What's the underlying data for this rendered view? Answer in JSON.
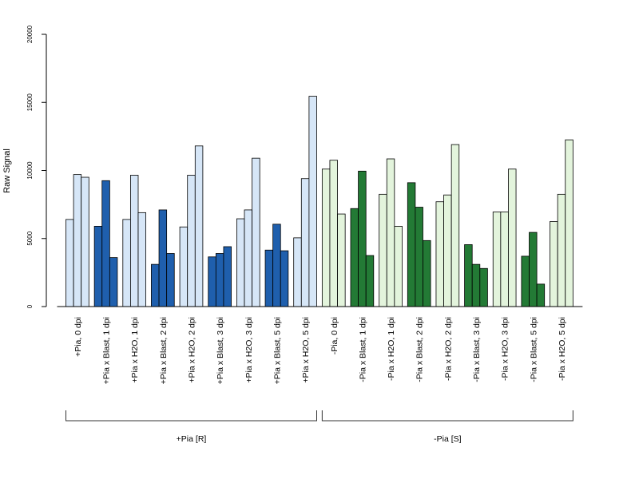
{
  "chart_data": {
    "type": "bar",
    "ylabel": "Raw Signal",
    "ylim": [
      0,
      20000
    ],
    "yticks": [
      0,
      5000,
      10000,
      15000,
      20000
    ],
    "ytick_labels": [
      "0",
      "5000",
      "10000",
      "15000",
      "20000"
    ],
    "grid": false,
    "colors": {
      "light_blue": "#d6e6f7",
      "dark_blue": "#1f5fad",
      "light_green": "#e3f4dc",
      "dark_green": "#237a35",
      "bar_border": "#000000",
      "axis": "#000000",
      "bracket": "#333333"
    },
    "groups": [
      {
        "label": "+Pia, 0 dpi",
        "values": [
          6400,
          9700,
          9500
        ],
        "color": "light_blue"
      },
      {
        "label": "+Pia x Blast, 1 dpi",
        "values": [
          5900,
          9250,
          3600
        ],
        "color": "dark_blue"
      },
      {
        "label": "+Pia x H2O, 1 dpi",
        "values": [
          6400,
          9650,
          6900
        ],
        "color": "light_blue"
      },
      {
        "label": "+Pia x Blast, 2 dpi",
        "values": [
          3100,
          7100,
          3900
        ],
        "color": "dark_blue"
      },
      {
        "label": "+Pia x H2O, 2 dpi",
        "values": [
          5850,
          9650,
          11800
        ],
        "color": "light_blue"
      },
      {
        "label": "+Pia x Blast, 3 dpi",
        "values": [
          3650,
          3900,
          4400
        ],
        "color": "dark_blue"
      },
      {
        "label": "+Pia x H2O, 3 dpi",
        "values": [
          6450,
          7100,
          10900
        ],
        "color": "light_blue"
      },
      {
        "label": "+Pia x Blast, 5 dpi",
        "values": [
          4150,
          6050,
          4100
        ],
        "color": "dark_blue"
      },
      {
        "label": "+Pia x H2O, 5 dpi",
        "values": [
          5050,
          9400,
          15450
        ],
        "color": "light_blue"
      },
      {
        "label": "-Pia, 0 dpi",
        "values": [
          10100,
          10750,
          6800
        ],
        "color": "light_green"
      },
      {
        "label": "-Pia x Blast, 1 dpi",
        "values": [
          7200,
          9950,
          3750
        ],
        "color": "dark_green"
      },
      {
        "label": "-Pia x H2O, 1 dpi",
        "values": [
          8250,
          10850,
          5900
        ],
        "color": "light_green"
      },
      {
        "label": "-Pia x Blast, 2 dpi",
        "values": [
          9100,
          7300,
          4850
        ],
        "color": "dark_green"
      },
      {
        "label": "-Pia x H2O, 2 dpi",
        "values": [
          7700,
          8200,
          11900
        ],
        "color": "light_green"
      },
      {
        "label": "-Pia x Blast, 3 dpi",
        "values": [
          4550,
          3100,
          2800
        ],
        "color": "dark_green"
      },
      {
        "label": "-Pia x H2O, 3 dpi",
        "values": [
          6950,
          6950,
          10100
        ],
        "color": "light_green"
      },
      {
        "label": "-Pia x Blast, 5 dpi",
        "values": [
          3700,
          5450,
          1650
        ],
        "color": "dark_green"
      },
      {
        "label": "-Pia x H2O, 5 dpi",
        "values": [
          6250,
          8250,
          12250
        ],
        "color": "light_green"
      }
    ],
    "brackets": [
      {
        "label": "+Pia [R]",
        "from_group": 0,
        "to_group": 8
      },
      {
        "label": "-Pia [S]",
        "from_group": 9,
        "to_group": 17
      }
    ]
  }
}
